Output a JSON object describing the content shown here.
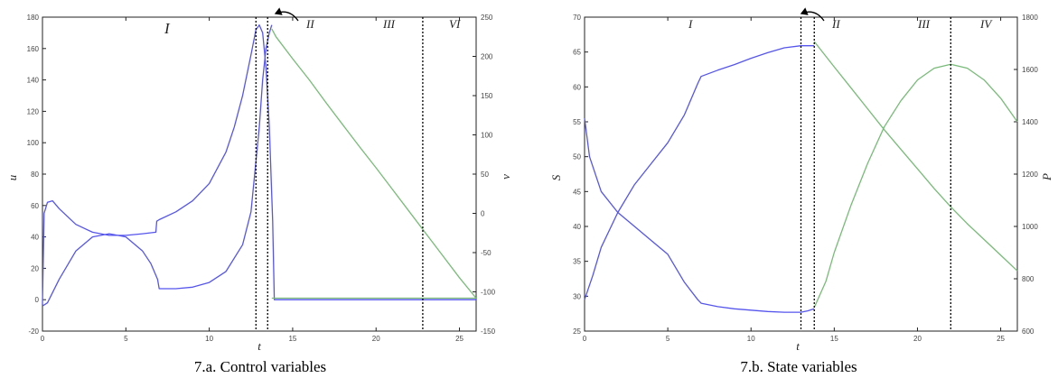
{
  "chart_data": [
    {
      "type": "line",
      "caption": "7.a. Control variables",
      "xlabel": "t",
      "ylabel_left": "u",
      "ylabel_right": "v",
      "xlim": [
        0,
        26
      ],
      "ylim_left": [
        -20,
        180
      ],
      "ylim_right": [
        -150,
        250
      ],
      "xticks": [
        0,
        5,
        10,
        15,
        20,
        25
      ],
      "yticks_left": [
        -20,
        0,
        20,
        40,
        60,
        80,
        100,
        120,
        140,
        160,
        180
      ],
      "yticks_right": [
        -150,
        -100,
        -50,
        0,
        50,
        100,
        150,
        200,
        250
      ],
      "grid": false,
      "colors": {
        "blue": "#5555ee",
        "green": "#77bb77"
      },
      "region_labels": [
        "I",
        "II",
        "III",
        "VI"
      ],
      "vlines": [
        12.8,
        13.5,
        22.8
      ],
      "series": [
        {
          "axis": "left",
          "color": "blue",
          "x": [
            0,
            0.1,
            0.3,
            0.6,
            1,
            2,
            3,
            4,
            5,
            6,
            6.8,
            6.85,
            7,
            8,
            9,
            10,
            11,
            11.5,
            12,
            12.5,
            12.8,
            13.0,
            13.2,
            13.4,
            13.6,
            13.8,
            13.9,
            14.0,
            15,
            20,
            26
          ],
          "y": [
            -3,
            55,
            62,
            63,
            58,
            48,
            43,
            41,
            41,
            42,
            43,
            50,
            51,
            56,
            63,
            74,
            94,
            110,
            130,
            156,
            172,
            175,
            170,
            148,
            110,
            50,
            0,
            0,
            0,
            0,
            0
          ]
        },
        {
          "axis": "left",
          "color": "blue",
          "x": [
            0,
            0.3,
            1,
            2,
            3,
            4,
            5,
            6,
            6.5,
            6.9,
            7,
            8,
            9,
            10,
            11,
            12,
            12.5,
            13.0,
            13.2,
            13.4,
            13.6,
            13.75
          ],
          "y": [
            -4,
            -2,
            13,
            31,
            40,
            42,
            40,
            31,
            23,
            13,
            7,
            7,
            8,
            11,
            18,
            35,
            56,
            110,
            140,
            160,
            170,
            175
          ]
        },
        {
          "axis": "right",
          "color": "green",
          "x": [
            13.75,
            14,
            15,
            16,
            17,
            18,
            19,
            20,
            21,
            22,
            23,
            24,
            25,
            26
          ],
          "y": [
            235,
            225,
            197,
            170,
            141,
            113,
            85,
            58,
            30,
            2,
            -26,
            -54,
            -82,
            -108
          ]
        },
        {
          "axis": "right",
          "color": "green",
          "x": [
            13.75,
            14,
            15,
            20,
            26
          ],
          "y": [
            -108,
            -108,
            -108,
            -108,
            -108
          ]
        }
      ]
    },
    {
      "type": "line",
      "caption": "7.b. State variables",
      "xlabel": "t",
      "ylabel_left": "S",
      "ylabel_right": "P",
      "xlim": [
        0,
        26
      ],
      "ylim_left": [
        25,
        70
      ],
      "ylim_right": [
        600,
        1800
      ],
      "xticks": [
        0,
        5,
        10,
        15,
        20,
        25
      ],
      "yticks_left": [
        25,
        30,
        35,
        40,
        45,
        50,
        55,
        60,
        65,
        70
      ],
      "yticks_right": [
        600,
        800,
        1000,
        1200,
        1400,
        1600,
        1800
      ],
      "grid": false,
      "colors": {
        "blue": "#5555ee",
        "green": "#77bb77"
      },
      "region_labels": [
        "I",
        "II",
        "III",
        "IV"
      ],
      "vlines": [
        13.0,
        13.8,
        22.0
      ],
      "series": [
        {
          "axis": "left",
          "color": "blue",
          "x": [
            0,
            0.5,
            1,
            2,
            3,
            4,
            5,
            6,
            6.8,
            7,
            8,
            9,
            10,
            11,
            12,
            13,
            13.8
          ],
          "y": [
            29.5,
            33,
            37,
            42,
            46,
            49,
            52,
            56,
            60.5,
            61.5,
            62.4,
            63.2,
            64.1,
            64.9,
            65.6,
            65.9,
            65.9
          ]
        },
        {
          "axis": "left",
          "color": "blue",
          "x": [
            0,
            0.3,
            1,
            2,
            3,
            4,
            5,
            6,
            6.8,
            7,
            8,
            9,
            10,
            11,
            12,
            13,
            13.4,
            13.8
          ],
          "y": [
            55.5,
            50,
            45,
            42,
            40,
            38,
            36,
            32,
            29.5,
            29,
            28.5,
            28.2,
            28,
            27.8,
            27.7,
            27.7,
            27.9,
            28.2
          ]
        },
        {
          "axis": "right",
          "color": "green",
          "x": [
            13.8,
            15,
            16,
            17,
            18,
            19,
            20,
            21,
            22,
            23,
            24,
            25,
            26
          ],
          "y": [
            1707,
            1610,
            1530,
            1450,
            1370,
            1295,
            1220,
            1145,
            1075,
            1010,
            950,
            890,
            830
          ]
        },
        {
          "axis": "right",
          "color": "green",
          "x": [
            13.8,
            14.5,
            15,
            16,
            17,
            18,
            19,
            20,
            21,
            22,
            23,
            24,
            25,
            26
          ],
          "y": [
            690,
            790,
            900,
            1080,
            1240,
            1380,
            1480,
            1560,
            1605,
            1620,
            1605,
            1560,
            1490,
            1400
          ]
        }
      ]
    }
  ]
}
